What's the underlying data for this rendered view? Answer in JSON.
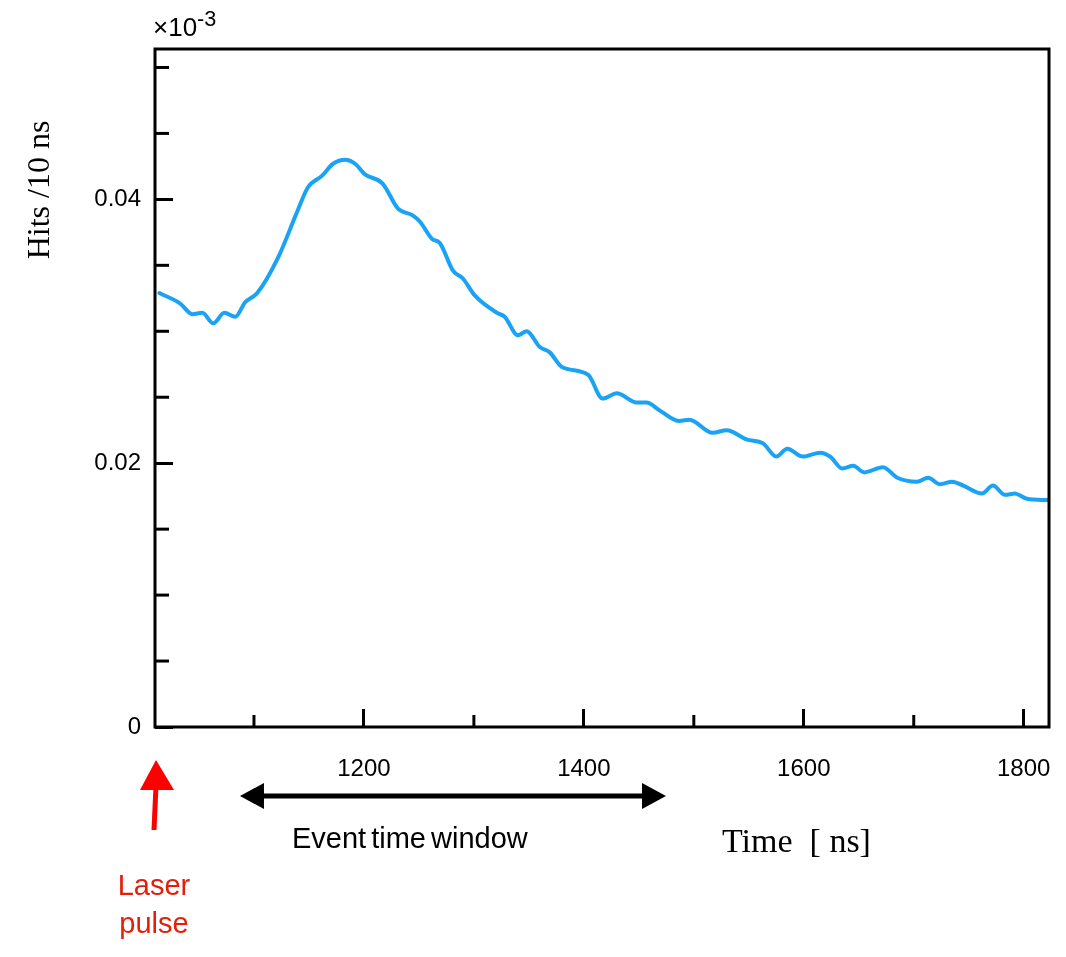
{
  "chart_data": {
    "type": "line",
    "xlabel": "Time  [ ns]",
    "ylabel": "Hits /10 ns",
    "annotations": [
      "×10$^{-3}$",
      "Event time window",
      "Laser pulse"
    ],
    "xlim": [
      1010,
      1823
    ],
    "ylim": [
      0,
      0.0514
    ],
    "xticks": [
      {
        "value": 1100,
        "label": null
      },
      1200,
      {
        "value": 1300,
        "label": null
      },
      1400,
      {
        "value": 1500,
        "label": null
      },
      1600,
      {
        "value": 1700,
        "label": null
      },
      1800
    ],
    "yticks": [
      0,
      {
        "value": 0.005,
        "label": null
      },
      {
        "value": 0.01,
        "label": null
      },
      {
        "value": 0.015,
        "label": null
      },
      0.02,
      {
        "value": 0.025,
        "label": null
      },
      {
        "value": 0.03,
        "label": null
      },
      {
        "value": 0.035,
        "label": null
      },
      0.04,
      {
        "value": 0.045,
        "label": null
      },
      {
        "value": 0.05,
        "label": null
      }
    ],
    "grid": false,
    "legend": false,
    "marker": "none",
    "line_style": "solid",
    "series": [
      {
        "color": "#1aa3f5",
        "x": [
          1014,
          1033,
          1044,
          1053,
          1063,
          1073,
          1083,
          1092,
          1103,
          1122,
          1139,
          1149,
          1162,
          1172,
          1183,
          1192,
          1201,
          1217,
          1231,
          1244,
          1251,
          1262,
          1269,
          1281,
          1290,
          1301,
          1321,
          1328,
          1340,
          1348,
          1360,
          1369,
          1380,
          1404,
          1417,
          1430,
          1448,
          1457,
          1469,
          1487,
          1496,
          1517,
          1530,
          1548,
          1563,
          1575,
          1585,
          1599,
          1615,
          1624,
          1635,
          1645,
          1655,
          1672,
          1685,
          1703,
          1713,
          1724,
          1735,
          1745,
          1762,
          1772,
          1783,
          1792,
          1803,
          1822
        ],
        "values": [
          0.0329,
          0.0321,
          0.0313,
          0.0314,
          0.0306,
          0.0314,
          0.0311,
          0.0322,
          0.0329,
          0.0356,
          0.039,
          0.0409,
          0.0418,
          0.0427,
          0.043,
          0.0427,
          0.0419,
          0.0412,
          0.0393,
          0.0388,
          0.0383,
          0.037,
          0.0367,
          0.0346,
          0.034,
          0.0327,
          0.0314,
          0.0311,
          0.0297,
          0.03,
          0.0288,
          0.0284,
          0.0273,
          0.0267,
          0.0249,
          0.0253,
          0.0246,
          0.0246,
          0.024,
          0.0232,
          0.0233,
          0.0223,
          0.0225,
          0.0218,
          0.0215,
          0.0205,
          0.0211,
          0.0205,
          0.0208,
          0.0205,
          0.0196,
          0.0198,
          0.0193,
          0.0197,
          0.0189,
          0.0186,
          0.0189,
          0.0184,
          0.0186,
          0.0183,
          0.0177,
          0.0183,
          0.0176,
          0.0177,
          0.0173,
          0.0172
        ]
      }
    ]
  }
}
